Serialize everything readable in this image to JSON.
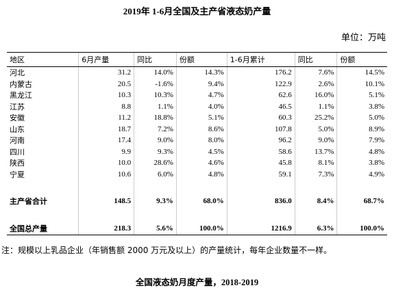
{
  "header": {
    "title": "2019年 1-6月全国及主产省液态奶产量",
    "unit": "单位：万吨"
  },
  "table": {
    "columns": [
      "地区",
      "6月产量",
      "同比",
      "份额",
      "1-6月累计",
      "同比",
      "份额"
    ],
    "rows": [
      [
        "河北",
        "31.2",
        "14.0%",
        "14.3%",
        "176.2",
        "7.6%",
        "14.5%"
      ],
      [
        "内蒙古",
        "20.5",
        "-1.6%",
        "9.4%",
        "122.9",
        "2.6%",
        "10.1%"
      ],
      [
        "黑龙江",
        "10.3",
        "10.3%",
        "4.7%",
        "62.6",
        "16.0%",
        "5.1%"
      ],
      [
        "江苏",
        "8.8",
        "1.1%",
        "4.0%",
        "46.5",
        "1.1%",
        "3.8%"
      ],
      [
        "安徽",
        "11.2",
        "18.8%",
        "5.1%",
        "60.3",
        "25.2%",
        "5.0%"
      ],
      [
        "山东",
        "18.7",
        "7.2%",
        "8.6%",
        "107.8",
        "5.0%",
        "8.9%"
      ],
      [
        "河南",
        "17.4",
        "9.0%",
        "8.0%",
        "96.2",
        "9.0%",
        "7.9%"
      ],
      [
        "四川",
        "9.9",
        "9.3%",
        "4.5%",
        "58.6",
        "13.7%",
        "4.8%"
      ],
      [
        "陕西",
        "10.0",
        "28.6%",
        "4.6%",
        "45.8",
        "8.1%",
        "3.8%"
      ],
      [
        "宁夏",
        "10.6",
        "6.0%",
        "4.8%",
        "59.1",
        "7.3%",
        "4.9%"
      ]
    ],
    "totals": [
      [
        "主产省合计",
        "148.5",
        "9.3%",
        "68.0%",
        "836.0",
        "8.4%",
        "68.7%"
      ],
      [
        "全国总产量",
        "218.3",
        "5.6%",
        "100.0%",
        "1216.9",
        "6.3%",
        "100.0%"
      ]
    ]
  },
  "note": "注：规模以上乳品企业（年销售额 2000 万元及以上）的产量统计，每年企业数量不一样。",
  "caption": "全国液态奶月度产量，2018-2019"
}
